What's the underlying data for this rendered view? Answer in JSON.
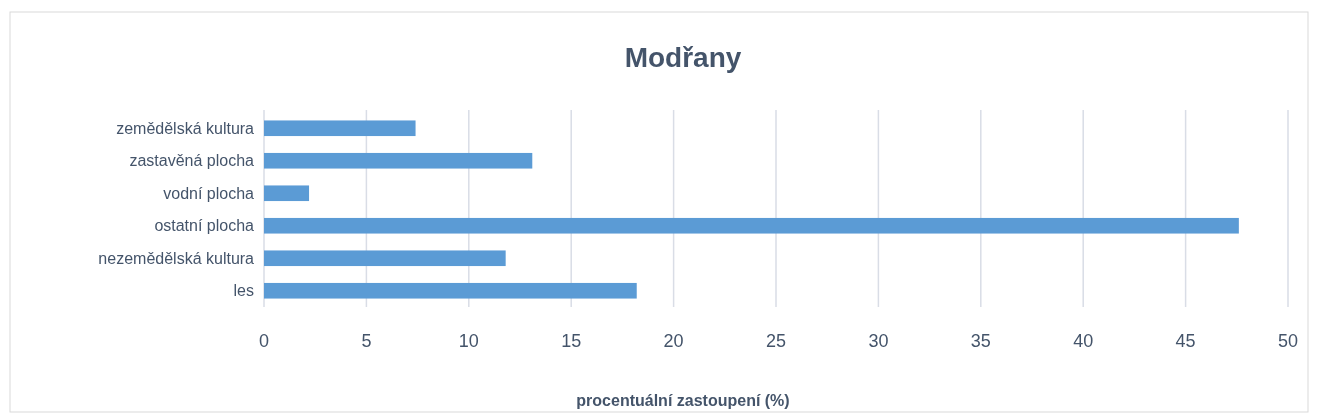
{
  "chart_data": {
    "type": "bar",
    "orientation": "horizontal",
    "title": "Modřany",
    "xlabel": "procentuální zastoupení (%)",
    "categories": [
      "zemědělská kultura",
      "zastavěná plocha",
      "vodní plocha",
      "ostatní plocha",
      "nezemědělská kultura",
      "les"
    ],
    "values": [
      7.4,
      13.1,
      2.2,
      47.6,
      11.8,
      18.2
    ],
    "color": "#5b9bd5",
    "xlim": [
      0,
      50
    ],
    "xticks": [
      0,
      5,
      10,
      15,
      20,
      25,
      30,
      35,
      40,
      45,
      50
    ],
    "grid": "x"
  }
}
